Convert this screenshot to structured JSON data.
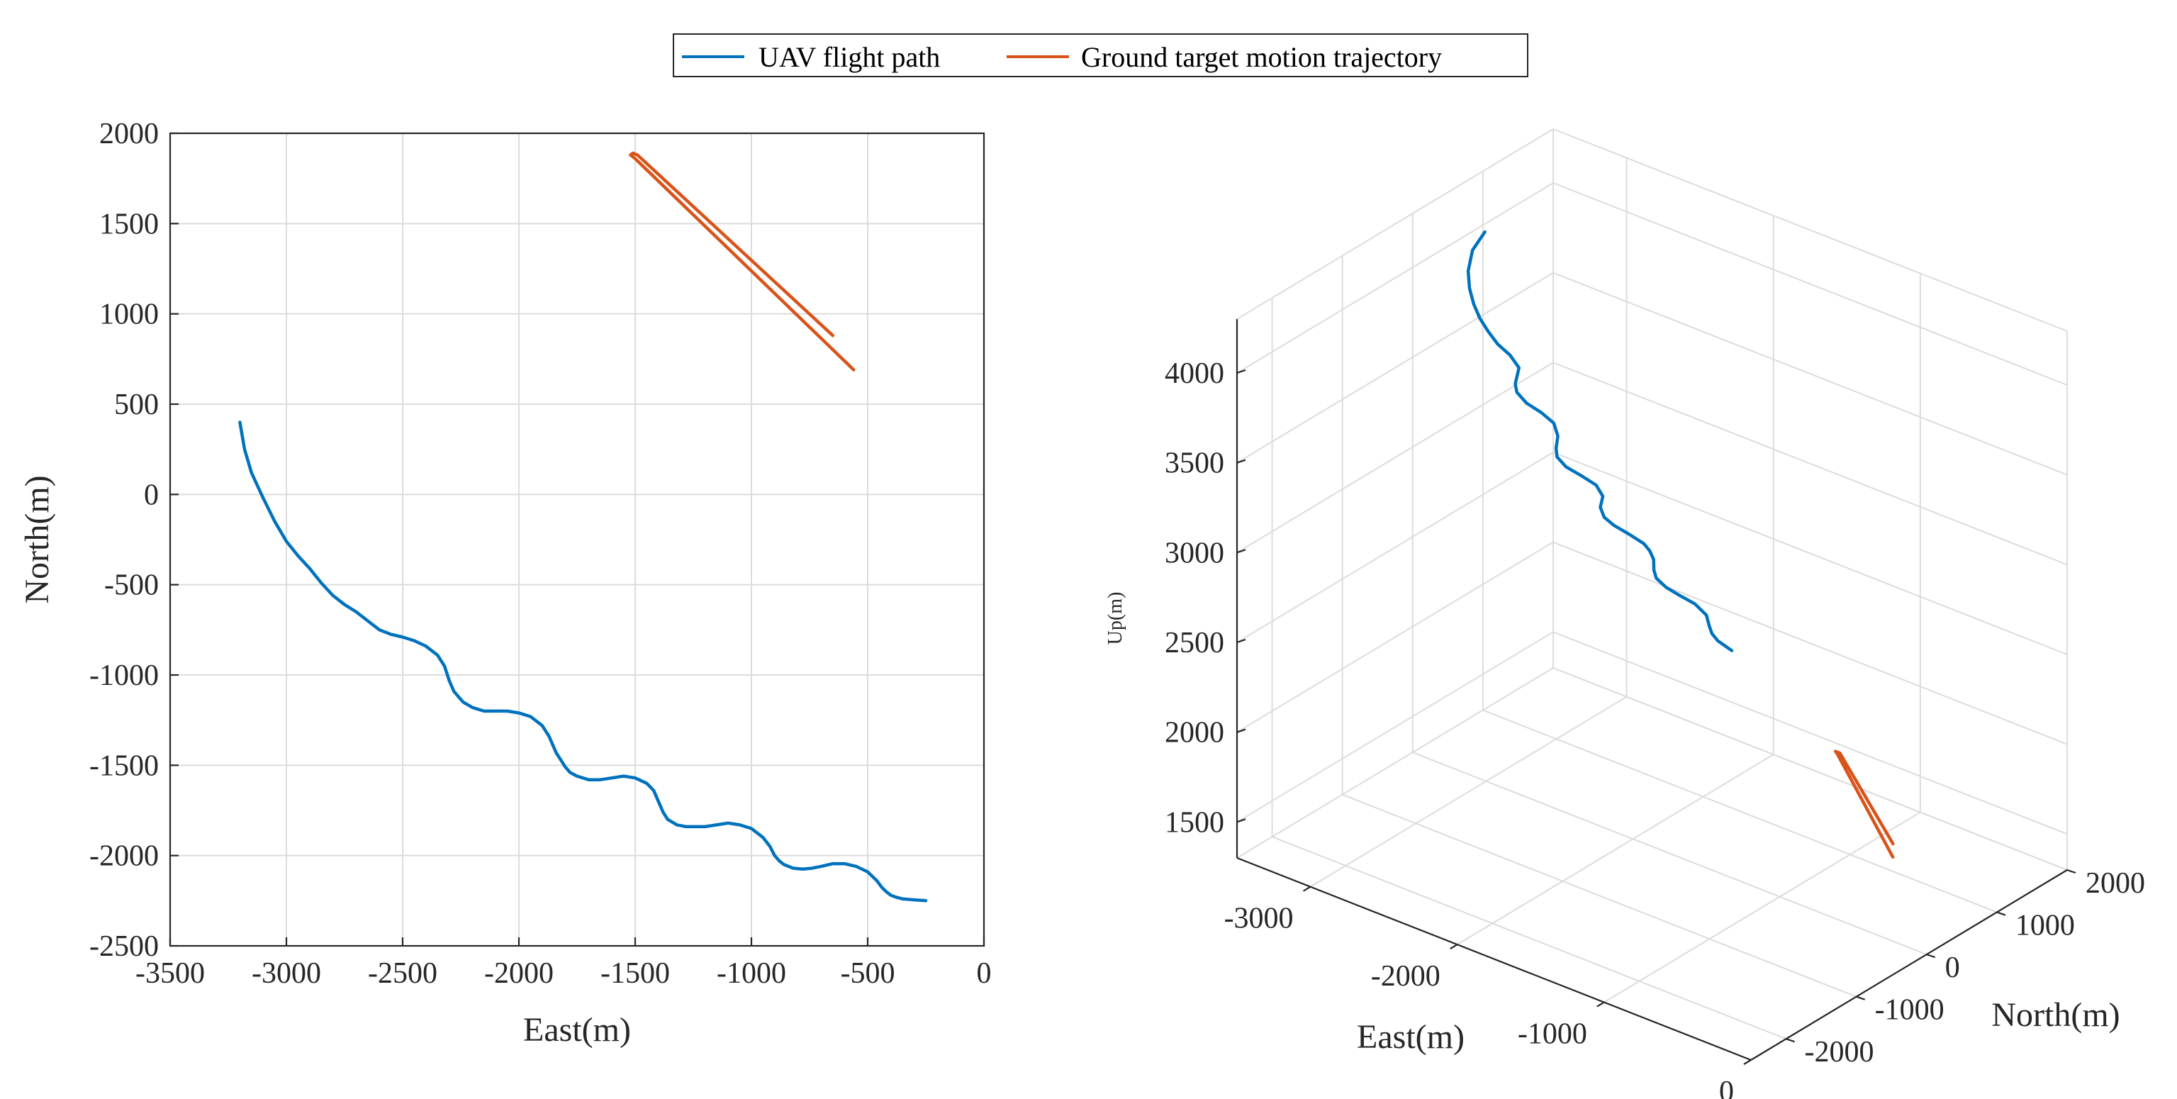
{
  "legend": {
    "items": [
      {
        "label": "UAV flight path",
        "color": "#0072BD"
      },
      {
        "label": "Ground target motion trajectory",
        "color": "#D95319"
      }
    ]
  },
  "chart_data": [
    {
      "type": "line",
      "view": "2d",
      "xlabel": "East(m)",
      "ylabel": "North(m)",
      "xlim": [
        -3500,
        0
      ],
      "ylim": [
        -2500,
        2000
      ],
      "xticks": [
        -3500,
        -3000,
        -2500,
        -2000,
        -1500,
        -1000,
        -500,
        0
      ],
      "yticks": [
        -2500,
        -2000,
        -1500,
        -1000,
        -500,
        0,
        500,
        1000,
        1500,
        2000
      ],
      "grid": true,
      "series": [
        {
          "name": "UAV flight path",
          "color": "#0072BD",
          "x": [
            -3200,
            -3180,
            -3150,
            -3100,
            -3050,
            -3000,
            -2950,
            -2900,
            -2850,
            -2800,
            -2750,
            -2700,
            -2650,
            -2600,
            -2550,
            -2500,
            -2450,
            -2400,
            -2350,
            -2320,
            -2300,
            -2280,
            -2260,
            -2240,
            -2200,
            -2150,
            -2100,
            -2050,
            -2000,
            -1950,
            -1900,
            -1870,
            -1840,
            -1820,
            -1800,
            -1780,
            -1750,
            -1700,
            -1650,
            -1600,
            -1550,
            -1500,
            -1450,
            -1420,
            -1400,
            -1380,
            -1360,
            -1320,
            -1280,
            -1250,
            -1200,
            -1150,
            -1100,
            -1050,
            -1000,
            -950,
            -920,
            -900,
            -880,
            -860,
            -820,
            -780,
            -740,
            -700,
            -650,
            -600,
            -550,
            -500,
            -460,
            -440,
            -420,
            -400,
            -380,
            -350,
            -300,
            -250
          ],
          "y": [
            400,
            250,
            120,
            -20,
            -150,
            -260,
            -340,
            -410,
            -490,
            -560,
            -610,
            -650,
            -700,
            -750,
            -775,
            -790,
            -810,
            -840,
            -890,
            -950,
            -1030,
            -1090,
            -1120,
            -1150,
            -1180,
            -1200,
            -1200,
            -1200,
            -1210,
            -1230,
            -1280,
            -1340,
            -1430,
            -1470,
            -1510,
            -1540,
            -1560,
            -1580,
            -1580,
            -1570,
            -1560,
            -1570,
            -1600,
            -1640,
            -1700,
            -1760,
            -1800,
            -1830,
            -1840,
            -1840,
            -1840,
            -1830,
            -1820,
            -1830,
            -1850,
            -1900,
            -1950,
            -2000,
            -2030,
            -2050,
            -2070,
            -2075,
            -2070,
            -2060,
            -2045,
            -2045,
            -2060,
            -2090,
            -2140,
            -2175,
            -2200,
            -2220,
            -2230,
            -2240,
            -2245,
            -2250
          ]
        },
        {
          "name": "Ground target motion trajectory",
          "color": "#D95319",
          "x": [
            -560,
            -1500,
            -1520,
            -1510,
            -1490,
            -650
          ],
          "y": [
            690,
            1860,
            1880,
            1890,
            1880,
            880
          ]
        }
      ]
    },
    {
      "type": "line",
      "view": "3d",
      "xlabel": "East(m)",
      "ylabel": "North(m)",
      "zlabel": "Up(m)",
      "xlim": [
        -3500,
        0
      ],
      "ylim": [
        -2500,
        2000
      ],
      "zlim": [
        1300,
        4300
      ],
      "xticks": [
        -3000,
        -2000,
        -1000,
        0
      ],
      "yticks": [
        -2000,
        -1000,
        0,
        1000,
        2000
      ],
      "zticks": [
        1500,
        2000,
        2500,
        3000,
        3500,
        4000
      ],
      "grid": true,
      "series": [
        {
          "name": "UAV flight path",
          "color": "#0072BD",
          "x": [
            -3200,
            -3150,
            -3050,
            -2950,
            -2850,
            -2750,
            -2650,
            -2550,
            -2450,
            -2350,
            -2280,
            -2240,
            -2150,
            -2050,
            -1950,
            -1870,
            -1820,
            -1780,
            -1700,
            -1600,
            -1500,
            -1420,
            -1380,
            -1320,
            -1250,
            -1150,
            -1050,
            -1000,
            -950,
            -900,
            -860,
            -780,
            -700,
            -600,
            -500,
            -440,
            -400,
            -350,
            -250
          ],
          "y": [
            400,
            120,
            -150,
            -340,
            -490,
            -610,
            -700,
            -775,
            -810,
            -890,
            -1090,
            -1150,
            -1200,
            -1200,
            -1230,
            -1340,
            -1470,
            -1540,
            -1580,
            -1570,
            -1570,
            -1640,
            -1760,
            -1830,
            -1840,
            -1830,
            -1830,
            -1850,
            -1900,
            -2000,
            -2050,
            -2075,
            -2060,
            -2045,
            -2090,
            -2175,
            -2220,
            -2240,
            -2250
          ],
          "z": [
            4200,
            4180,
            4160,
            4140,
            4120,
            4100,
            4080,
            4060,
            4040,
            4020,
            4000,
            3980,
            3960,
            3940,
            3920,
            3900,
            3880,
            3860,
            3840,
            3820,
            3800,
            3780,
            3760,
            3740,
            3720,
            3700,
            3680,
            3660,
            3640,
            3620,
            3600,
            3580,
            3560,
            3540,
            3520,
            3500,
            3480,
            3460,
            3440
          ]
        },
        {
          "name": "Ground target motion trajectory",
          "color": "#D95319",
          "x": [
            -560,
            -1500,
            -1520,
            -1490,
            -650
          ],
          "y": [
            690,
            1860,
            1880,
            1880,
            880
          ],
          "z": [
            1500,
            1500,
            1500,
            1500,
            1500
          ]
        }
      ]
    }
  ]
}
